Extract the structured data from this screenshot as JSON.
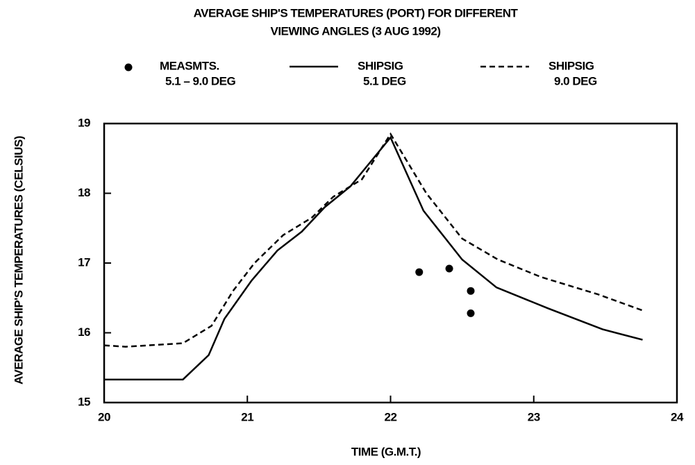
{
  "chart_data": {
    "type": "line",
    "title": [
      "AVERAGE SHIP'S TEMPERATURES (PORT) FOR DIFFERENT",
      "VIEWING ANGLES (3 AUG 1992)"
    ],
    "xlabel": "TIME (G.M.T.)",
    "ylabel": "AVERAGE SHIP'S TEMPERATURES (CELSIUS)",
    "xlim": [
      20,
      24
    ],
    "xticks": [
      20,
      21,
      22,
      23,
      24
    ],
    "ylim": [
      15,
      19
    ],
    "yticks": [
      15,
      16,
      17,
      18,
      19
    ],
    "grid": false,
    "series": [
      {
        "name": [
          "MEASMTS.",
          "5.1 – 9.0 DEG"
        ],
        "type": "scatter",
        "color": "#000000",
        "x": [
          22.2,
          22.41,
          22.56,
          22.56
        ],
        "values": [
          16.87,
          16.92,
          16.6,
          16.28
        ]
      },
      {
        "name": [
          "SHIPSIG",
          "5.1 DEG"
        ],
        "type": "line",
        "style": "solid",
        "color": "#000000",
        "x": [
          20,
          20.55,
          20.73,
          20.84,
          21.03,
          21.21,
          21.38,
          21.54,
          21.72,
          22.0,
          22.23,
          22.5,
          22.74,
          23.1,
          23.48,
          23.76
        ],
        "values": [
          15.33,
          15.33,
          15.68,
          16.2,
          16.75,
          17.18,
          17.45,
          17.8,
          18.1,
          18.8,
          17.75,
          17.05,
          16.65,
          16.35,
          16.05,
          15.9
        ]
      },
      {
        "name": [
          "SHIPSIG",
          "9.0 DEG"
        ],
        "type": "line",
        "style": "dashed",
        "color": "#000000",
        "x": [
          20,
          20.15,
          20.55,
          20.75,
          20.9,
          21.05,
          21.25,
          21.45,
          21.6,
          21.8,
          22.0,
          22.25,
          22.5,
          22.75,
          23.05,
          23.45,
          23.76
        ],
        "values": [
          15.82,
          15.8,
          15.85,
          16.1,
          16.6,
          17.0,
          17.4,
          17.65,
          17.95,
          18.2,
          18.85,
          18.0,
          17.35,
          17.05,
          16.8,
          16.55,
          16.32
        ]
      }
    ]
  }
}
